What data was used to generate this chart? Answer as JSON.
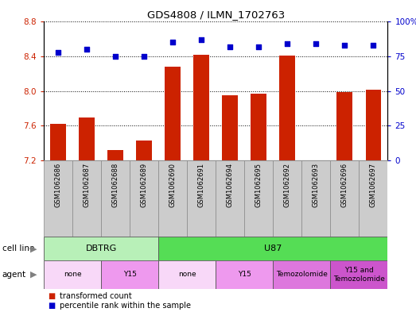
{
  "title": "GDS4808 / ILMN_1702763",
  "samples": [
    "GSM1062686",
    "GSM1062687",
    "GSM1062688",
    "GSM1062689",
    "GSM1062690",
    "GSM1062691",
    "GSM1062694",
    "GSM1062695",
    "GSM1062692",
    "GSM1062693",
    "GSM1062696",
    "GSM1062697"
  ],
  "transformed_count": [
    7.62,
    7.69,
    7.32,
    7.43,
    8.28,
    8.42,
    7.95,
    7.97,
    8.41,
    7.2,
    7.99,
    8.01
  ],
  "percentile_rank": [
    78,
    80,
    75,
    75,
    85,
    87,
    82,
    82,
    84,
    84,
    83,
    83
  ],
  "y_min": 7.2,
  "y_max": 8.8,
  "y_ticks": [
    7.2,
    7.6,
    8.0,
    8.4,
    8.8
  ],
  "y2_ticks": [
    0,
    25,
    50,
    75,
    100
  ],
  "bar_color": "#cc2200",
  "dot_color": "#0000cc",
  "cell_line_groups": [
    {
      "label": "DBTRG",
      "start": 0,
      "end": 3,
      "color": "#b8f0b8"
    },
    {
      "label": "U87",
      "start": 4,
      "end": 11,
      "color": "#55dd55"
    }
  ],
  "agent_groups": [
    {
      "label": "none",
      "start": 0,
      "end": 1,
      "color": "#f8d8f8"
    },
    {
      "label": "Y15",
      "start": 2,
      "end": 3,
      "color": "#ee99ee"
    },
    {
      "label": "none",
      "start": 4,
      "end": 5,
      "color": "#f8d8f8"
    },
    {
      "label": "Y15",
      "start": 6,
      "end": 7,
      "color": "#ee99ee"
    },
    {
      "label": "Temozolomide",
      "start": 8,
      "end": 9,
      "color": "#dd77dd"
    },
    {
      "label": "Y15 and\nTemozolomide",
      "start": 10,
      "end": 11,
      "color": "#cc55cc"
    }
  ],
  "tick_label_color_left": "#cc2200",
  "tick_label_color_right": "#0000cc",
  "bar_bottom": 7.2,
  "sample_box_color": "#cccccc",
  "sample_box_edge": "#888888"
}
